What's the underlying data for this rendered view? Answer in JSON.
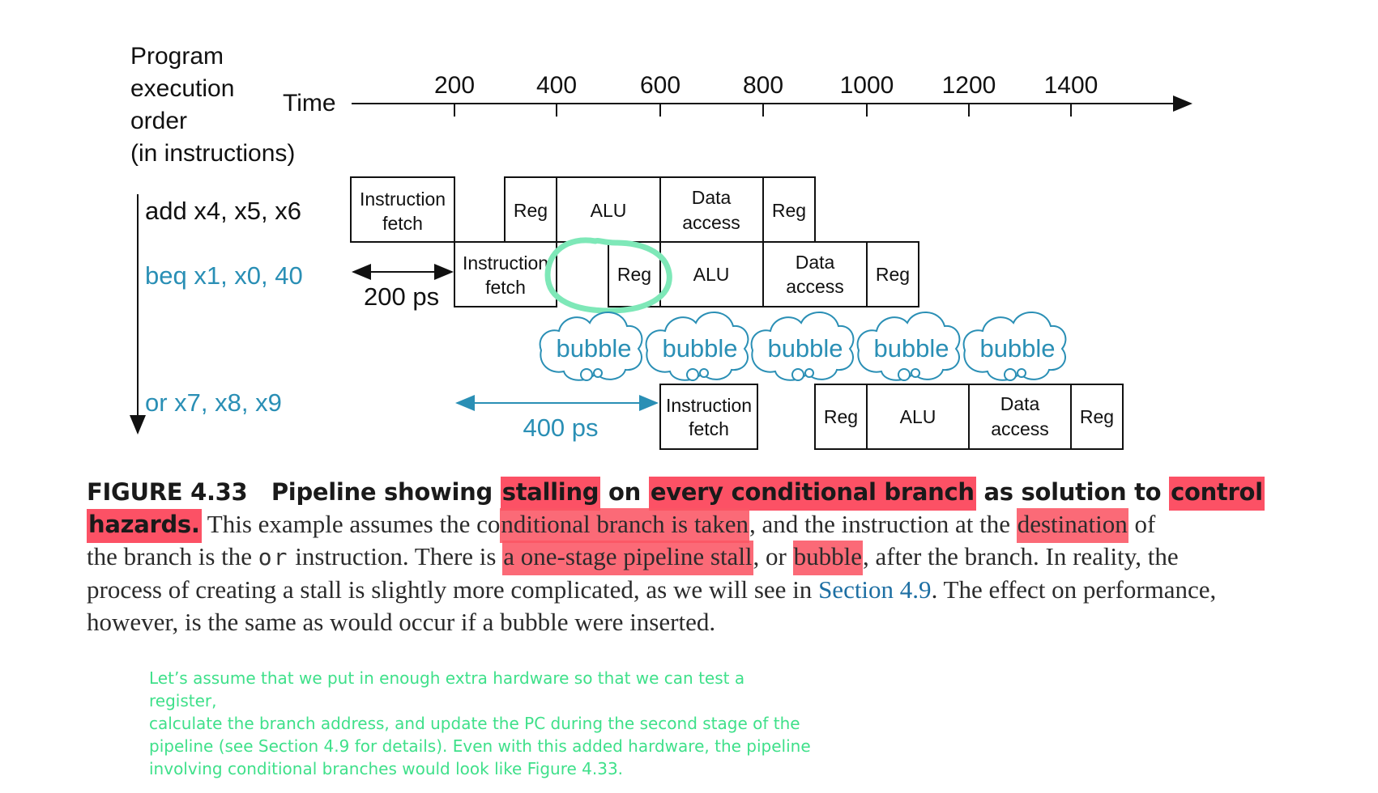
{
  "diagram": {
    "order_label": [
      "Program",
      "execution",
      "order",
      "(in instructions)"
    ],
    "time_label": "Time",
    "ticks": [
      "200",
      "400",
      "600",
      "800",
      "1000",
      "1200",
      "1400"
    ],
    "instructions": {
      "add": "add x4, x5, x6",
      "beq": "beq x1, x0, 40",
      "or": "or x7, x8, x9"
    },
    "stages": {
      "ifetch_1": "Instruction",
      "ifetch_2": "fetch",
      "reg": "Reg",
      "alu": "ALU",
      "dmem_1": "Data",
      "dmem_2": "access"
    },
    "bubble_label": "bubble",
    "interval_200": "200 ps",
    "interval_400": "400 ps",
    "colors": {
      "accent_blue": "#2a8fb5",
      "note_green": "#3fe08a",
      "highlight_red": "#fc4258",
      "circle_green": "#7ee8b8"
    }
  },
  "caption": {
    "figure_label": "FIGURE 4.33",
    "bold_1": "Pipeline showing ",
    "bold_hl_1": "stalling",
    "bold_2": " on ",
    "bold_hl_2": "every conditional branch",
    "bold_3": " as solution to ",
    "bold_hl_3": "control",
    "bold_hl_4": "hazards.",
    "t1": " This example assumes the co",
    "hl_1": "nditional branch is taken",
    "t2": ", and the instruction at the ",
    "hl_2": "destination",
    "t3": " of",
    "t4": "the branch is the ",
    "code": "or",
    "t5": " instruction. There is ",
    "hl_3": "a one-stage pipeline stall",
    "t6": ", or ",
    "hl_4": "bubble",
    "t7": ", after the branch. In reality, the",
    "t8": "process of creating a stall is slightly more complicated, as we will see in ",
    "link": "Section 4.9",
    "t9": ". The effect on performance,",
    "t10": "however, is the same as would occur if a bubble were inserted."
  },
  "note": {
    "lines": [
      "Let’s assume that we put in enough extra hardware so that we can test a register,",
      "calculate the branch address, and update the PC during the second stage of the",
      "pipeline (see Section 4.9 for details). Even with this added hardware, the pipeline",
      "involving conditional branches would look like Figure 4.33."
    ]
  }
}
